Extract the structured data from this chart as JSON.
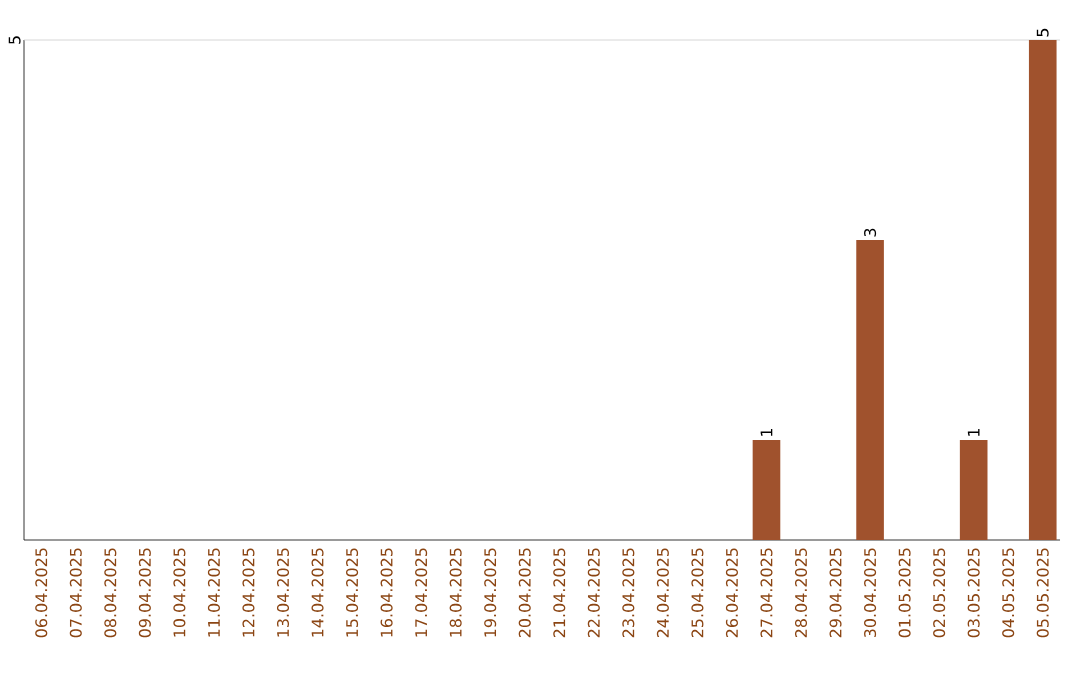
{
  "chart_data": {
    "type": "bar",
    "categories": [
      "06.04.2025",
      "07.04.2025",
      "08.04.2025",
      "09.04.2025",
      "10.04.2025",
      "11.04.2025",
      "12.04.2025",
      "13.04.2025",
      "14.04.2025",
      "15.04.2025",
      "16.04.2025",
      "17.04.2025",
      "18.04.2025",
      "19.04.2025",
      "20.04.2025",
      "21.04.2025",
      "22.04.2025",
      "23.04.2025",
      "24.04.2025",
      "25.04.2025",
      "26.04.2025",
      "27.04.2025",
      "28.04.2025",
      "29.04.2025",
      "30.04.2025",
      "01.05.2025",
      "02.05.2025",
      "03.05.2025",
      "04.05.2025",
      "05.05.2025"
    ],
    "values": [
      null,
      null,
      null,
      null,
      null,
      null,
      null,
      null,
      null,
      null,
      null,
      null,
      null,
      null,
      null,
      null,
      null,
      null,
      null,
      null,
      null,
      1,
      null,
      null,
      3,
      null,
      null,
      1,
      null,
      5
    ],
    "value_labels": [
      null,
      null,
      null,
      null,
      null,
      null,
      null,
      null,
      null,
      null,
      null,
      null,
      null,
      null,
      null,
      null,
      null,
      null,
      null,
      null,
      null,
      "1",
      null,
      null,
      "3",
      null,
      null,
      "1",
      null,
      "5"
    ],
    "color": "#a0522d",
    "ylim": [
      0,
      5
    ],
    "ref_lines": [
      {
        "axis": "y",
        "value": 5,
        "label": "5",
        "color": "#cccccc"
      }
    ]
  }
}
